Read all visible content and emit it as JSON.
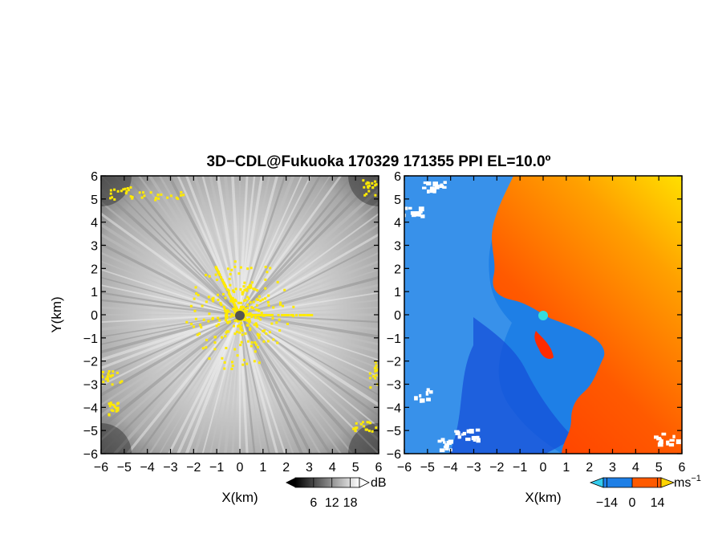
{
  "title": "3D−CDL@Fukuoka 170329 171355 PPI EL=10.0º",
  "colors": {
    "reflectivity_bg": "#a9a9a9",
    "echo_yellow": "#ffea00",
    "radar_marker_left": "#555555",
    "radar_marker_right": "#33dddd",
    "vel_negative": "#1e7fe6",
    "vel_deep_negative": "#1650d8",
    "vel_positive_red": "#ff2a00",
    "vel_positive_orange": "#ff8a00",
    "vel_positive_yellow": "#ffd400"
  },
  "chart_data": [
    {
      "type": "heatmap",
      "name": "reflectivity-ppi",
      "xlabel": "X(km)",
      "ylabel": "Y(km)",
      "xlim": [
        -6,
        6
      ],
      "ylim": [
        -6,
        6
      ],
      "x_ticks": [
        -6,
        -5,
        -4,
        -3,
        -2,
        -1,
        0,
        1,
        2,
        3,
        4,
        5,
        6
      ],
      "y_ticks": [
        -6,
        -5,
        -4,
        -3,
        -2,
        -1,
        0,
        1,
        2,
        3,
        4,
        5,
        6
      ],
      "tick_labels": [
        "−6",
        "−5",
        "−4",
        "−3",
        "−2",
        "−1",
        "0",
        "1",
        "2",
        "3",
        "4",
        "5",
        "6"
      ],
      "colorbar": {
        "unit": "dB",
        "tick_labels": [
          "6",
          "12",
          "18"
        ],
        "ticks": [
          6,
          12,
          18
        ]
      },
      "radar_location": [
        0,
        0
      ]
    },
    {
      "type": "heatmap",
      "name": "doppler-velocity-ppi",
      "xlabel": "X(km)",
      "ylabel": "",
      "xlim": [
        -6,
        6
      ],
      "ylim": [
        -6,
        6
      ],
      "x_ticks": [
        -6,
        -5,
        -4,
        -3,
        -2,
        -1,
        0,
        1,
        2,
        3,
        4,
        5,
        6
      ],
      "y_ticks": [
        -6,
        -5,
        -4,
        -3,
        -2,
        -1,
        0,
        1,
        2,
        3,
        4,
        5,
        6
      ],
      "tick_labels": [
        "−6",
        "−5",
        "−4",
        "−3",
        "−2",
        "−1",
        "0",
        "1",
        "2",
        "3",
        "4",
        "5",
        "6"
      ],
      "colorbar": {
        "unit": "ms",
        "unit_superscript": "−1",
        "tick_labels": [
          "−14",
          "0",
          "14"
        ],
        "ticks": [
          -14,
          0,
          14
        ]
      },
      "radar_location": [
        0,
        0
      ]
    }
  ]
}
